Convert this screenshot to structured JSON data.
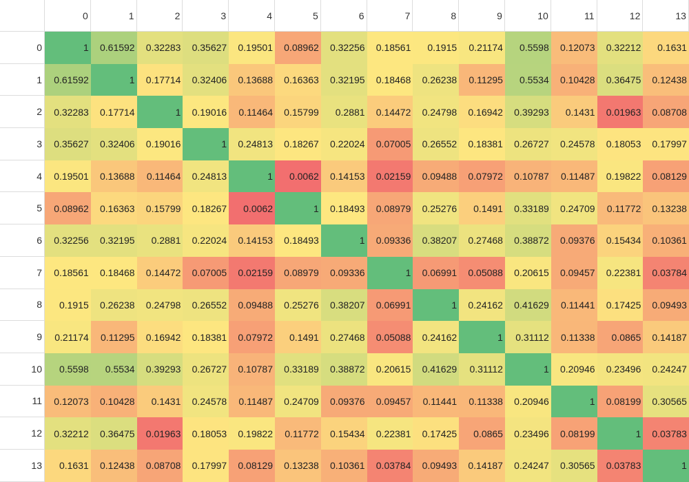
{
  "headers": [
    "0",
    "1",
    "2",
    "3",
    "4",
    "5",
    "6",
    "7",
    "8",
    "9",
    "10",
    "11",
    "12",
    "13"
  ],
  "colors": {
    "low": "#f26f6f",
    "mid": "#fde780",
    "high": "#63be7b"
  },
  "matrix": [
    [
      "1",
      "0.61592",
      "0.32283",
      "0.35627",
      "0.19501",
      "0.08962",
      "0.32256",
      "0.18561",
      "0.1915",
      "0.21174",
      "0.5598",
      "0.12073",
      "0.32212",
      "0.1631"
    ],
    [
      "0.61592",
      "1",
      "0.17714",
      "0.32406",
      "0.13688",
      "0.16363",
      "0.32195",
      "0.18468",
      "0.26238",
      "0.11295",
      "0.5534",
      "0.10428",
      "0.36475",
      "0.12438"
    ],
    [
      "0.32283",
      "0.17714",
      "1",
      "0.19016",
      "0.11464",
      "0.15799",
      "0.2881",
      "0.14472",
      "0.24798",
      "0.16942",
      "0.39293",
      "0.1431",
      "0.01963",
      "0.08708"
    ],
    [
      "0.35627",
      "0.32406",
      "0.19016",
      "1",
      "0.24813",
      "0.18267",
      "0.22024",
      "0.07005",
      "0.26552",
      "0.18381",
      "0.26727",
      "0.24578",
      "0.18053",
      "0.17997"
    ],
    [
      "0.19501",
      "0.13688",
      "0.11464",
      "0.24813",
      "1",
      "0.0062",
      "0.14153",
      "0.02159",
      "0.09488",
      "0.07972",
      "0.10787",
      "0.11487",
      "0.19822",
      "0.08129"
    ],
    [
      "0.08962",
      "0.16363",
      "0.15799",
      "0.18267",
      "0.0062",
      "1",
      "0.18493",
      "0.08979",
      "0.25276",
      "0.1491",
      "0.33189",
      "0.24709",
      "0.11772",
      "0.13238"
    ],
    [
      "0.32256",
      "0.32195",
      "0.2881",
      "0.22024",
      "0.14153",
      "0.18493",
      "1",
      "0.09336",
      "0.38207",
      "0.27468",
      "0.38872",
      "0.09376",
      "0.15434",
      "0.10361"
    ],
    [
      "0.18561",
      "0.18468",
      "0.14472",
      "0.07005",
      "0.02159",
      "0.08979",
      "0.09336",
      "1",
      "0.06991",
      "0.05088",
      "0.20615",
      "0.09457",
      "0.22381",
      "0.03784"
    ],
    [
      "0.1915",
      "0.26238",
      "0.24798",
      "0.26552",
      "0.09488",
      "0.25276",
      "0.38207",
      "0.06991",
      "1",
      "0.24162",
      "0.41629",
      "0.11441",
      "0.17425",
      "0.09493"
    ],
    [
      "0.21174",
      "0.11295",
      "0.16942",
      "0.18381",
      "0.07972",
      "0.1491",
      "0.27468",
      "0.05088",
      "0.24162",
      "1",
      "0.31112",
      "0.11338",
      "0.0865",
      "0.14187"
    ],
    [
      "0.5598",
      "0.5534",
      "0.39293",
      "0.26727",
      "0.10787",
      "0.33189",
      "0.38872",
      "0.20615",
      "0.41629",
      "0.31112",
      "1",
      "0.20946",
      "0.23496",
      "0.24247"
    ],
    [
      "0.12073",
      "0.10428",
      "0.1431",
      "0.24578",
      "0.11487",
      "0.24709",
      "0.09376",
      "0.09457",
      "0.11441",
      "0.11338",
      "0.20946",
      "1",
      "0.08199",
      "0.30565"
    ],
    [
      "0.32212",
      "0.36475",
      "0.01963",
      "0.18053",
      "0.19822",
      "0.11772",
      "0.15434",
      "0.22381",
      "0.17425",
      "0.0865",
      "0.23496",
      "0.08199",
      "1",
      "0.03783"
    ],
    [
      "0.1631",
      "0.12438",
      "0.08708",
      "0.17997",
      "0.08129",
      "0.13238",
      "0.10361",
      "0.03784",
      "0.09493",
      "0.14187",
      "0.24247",
      "0.30565",
      "0.03783",
      "1"
    ]
  ]
}
